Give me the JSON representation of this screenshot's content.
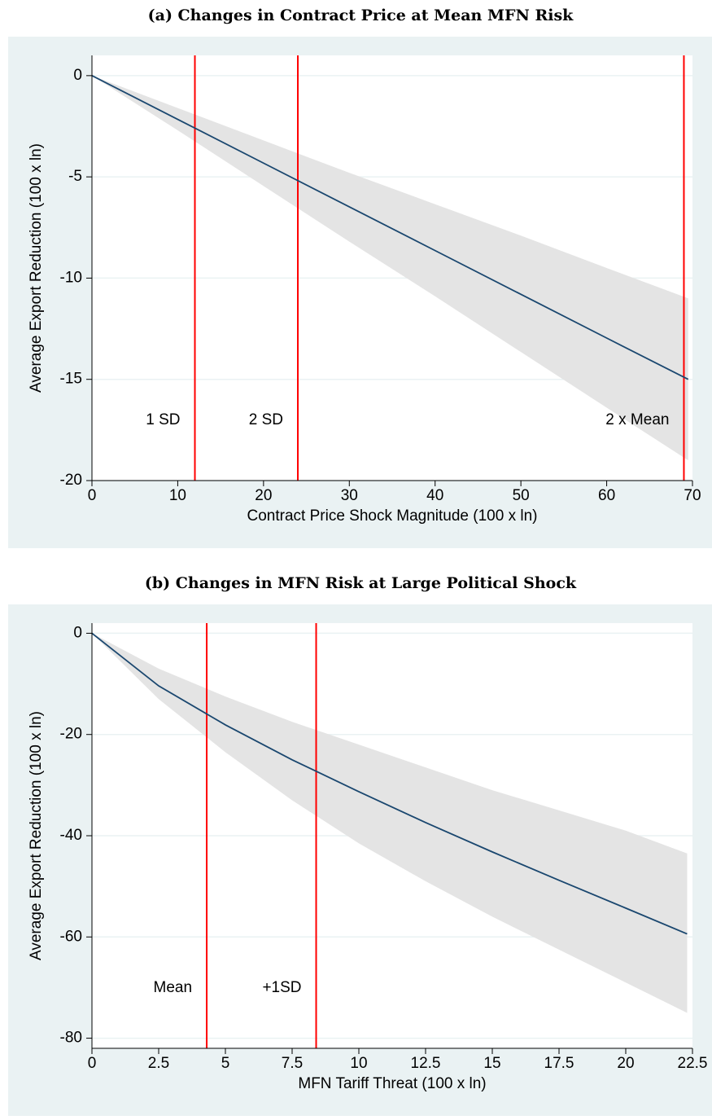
{
  "chart_data": [
    {
      "type": "line",
      "title": "(a) Changes in Contract Price at Mean MFN Risk",
      "x_label": "Contract Price Shock Magnitude (100 x ln)",
      "y_label": "Average Export Reduction (100 x ln)",
      "x": [
        0,
        10,
        20,
        30,
        40,
        50,
        60,
        69.5
      ],
      "series": [
        {
          "color": "#1a476f",
          "values": [
            0,
            -2.16,
            -4.32,
            -6.48,
            -8.64,
            -10.8,
            -12.96,
            -15.0
          ]
        }
      ],
      "band_upper": [
        0,
        -1.6,
        -3.2,
        -4.8,
        -6.35,
        -7.9,
        -9.5,
        -11
      ],
      "band_lower": [
        0,
        -2.7,
        -5.45,
        -8.2,
        -10.9,
        -13.65,
        -16.4,
        -19
      ],
      "band_color": "#e4e4e4",
      "vlines": [
        {
          "x": 12,
          "label": "1 SD"
        },
        {
          "x": 24,
          "label": "2 SD"
        },
        {
          "x": 69,
          "label": "2 x Mean"
        }
      ],
      "vline_color": "#ff0000",
      "xlim": [
        0,
        70
      ],
      "ylim": [
        -20,
        1
      ],
      "xticks": [
        0,
        10,
        20,
        30,
        40,
        50,
        60,
        70
      ],
      "yticks": [
        0,
        -5,
        -10,
        -15,
        -20
      ],
      "grid": true
    },
    {
      "type": "line",
      "title": "(b) Changes in MFN Risk at Large Political Shock",
      "x_label": "MFN Tariff Threat (100 x ln)",
      "y_label": "Average Export Reduction (100 x ln)",
      "x": [
        0,
        2.5,
        5,
        7.5,
        10,
        12.5,
        15,
        17.5,
        20,
        22.3
      ],
      "series": [
        {
          "color": "#1a476f",
          "values": [
            0,
            -10.4,
            -18.1,
            -25.0,
            -31.3,
            -37.4,
            -43.2,
            -48.8,
            -54.3,
            -59.4
          ]
        }
      ],
      "band_upper": [
        0,
        -7,
        -12.5,
        -17.5,
        -22,
        -26.5,
        -31,
        -35,
        -39,
        -43.5
      ],
      "band_lower": [
        0,
        -13,
        -23.5,
        -33,
        -41.5,
        -49,
        -56,
        -62.5,
        -69,
        -75
      ],
      "band_color": "#e4e4e4",
      "vlines": [
        {
          "x": 4.3,
          "label": "Mean"
        },
        {
          "x": 8.4,
          "label": "+1SD"
        }
      ],
      "vline_color": "#ff0000",
      "xlim": [
        0,
        22.5
      ],
      "ylim": [
        -82,
        2
      ],
      "xticks": [
        0,
        2.5,
        5,
        7.5,
        10,
        12.5,
        15,
        17.5,
        20,
        22.5
      ],
      "yticks": [
        0,
        -20,
        -40,
        -60,
        -80
      ],
      "grid": true
    }
  ]
}
